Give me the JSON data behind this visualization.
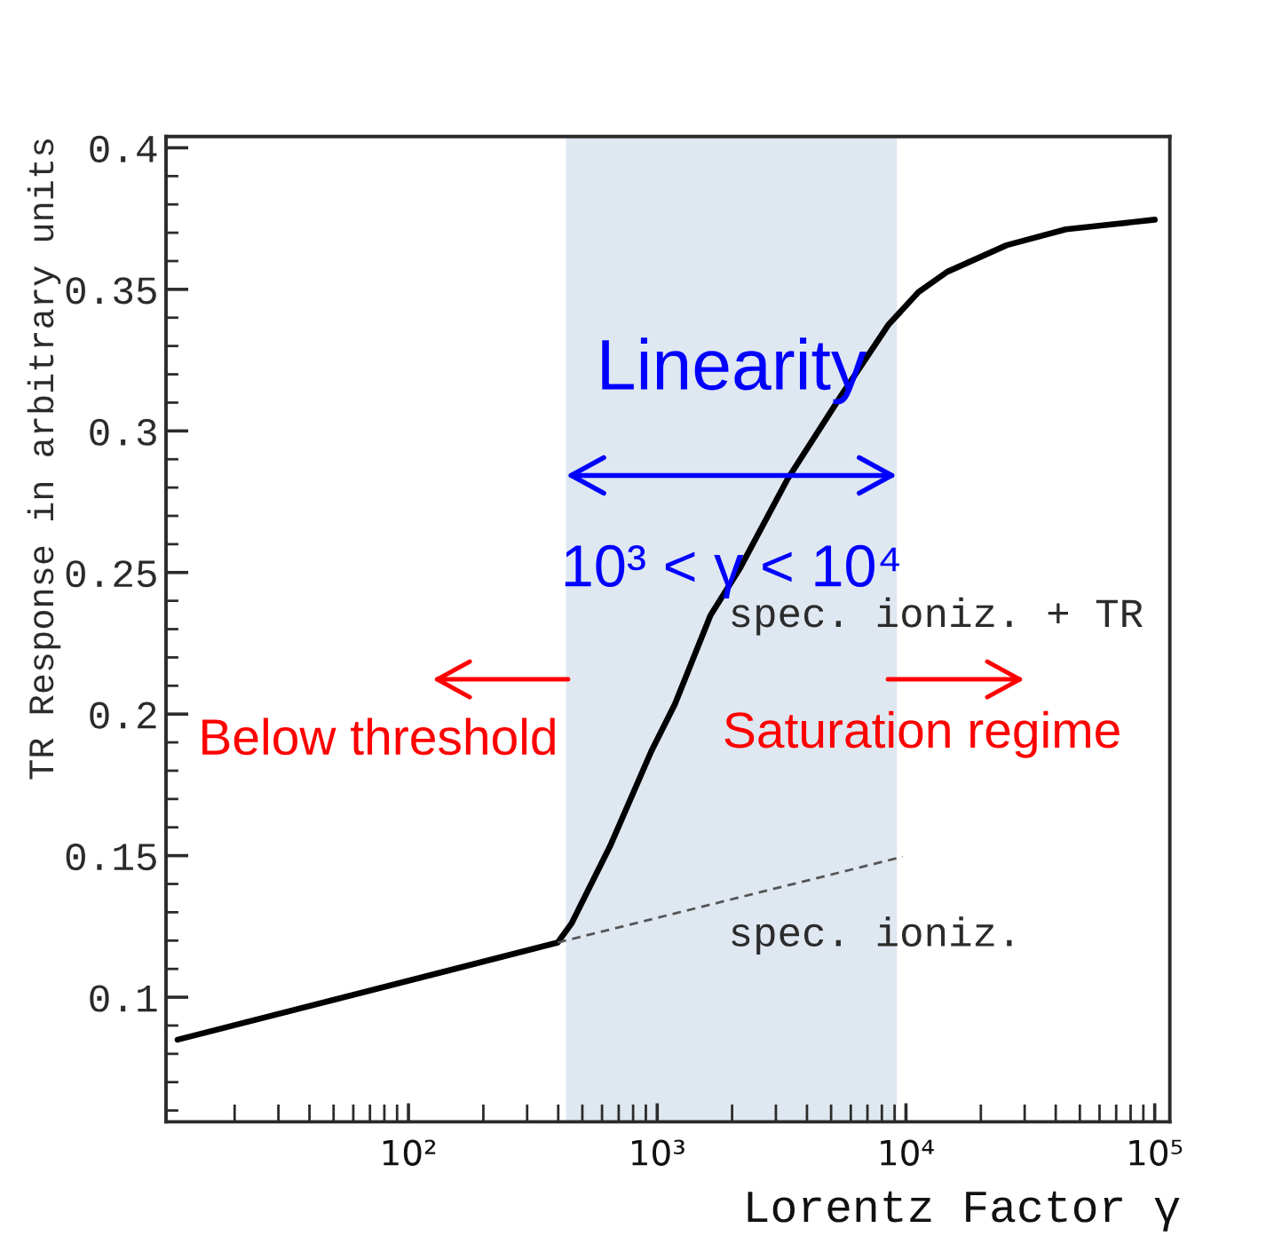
{
  "chart_data": {
    "type": "line",
    "xlabel": "Lorentz Factor γ",
    "ylabel": "TR Response in arbitrary units",
    "log": "x",
    "xlim": [
      10.6,
      115000
    ],
    "ylim": [
      0.056,
      0.404
    ],
    "xticks": [
      {
        "value": 100,
        "label": "10²"
      },
      {
        "value": 1000,
        "label": "10³"
      },
      {
        "value": 10000,
        "label": "10⁴"
      },
      {
        "value": 100000,
        "label": "10⁵"
      }
    ],
    "yticks": [
      0.1,
      0.15,
      0.2,
      0.25,
      0.3,
      0.35,
      0.4
    ],
    "series": [
      {
        "color": "#000000",
        "x": [
          11.8,
          398,
          452,
          646,
          946,
          1178,
          1637,
          2154,
          3342,
          5470,
          8482,
          11220,
          14650,
          25400,
          43950,
          100000
        ],
        "values": [
          0.085,
          0.1193,
          0.126,
          0.1533,
          0.1868,
          0.2035,
          0.2349,
          0.2516,
          0.283,
          0.3123,
          0.3374,
          0.349,
          0.3562,
          0.3656,
          0.3712,
          0.3746
        ]
      },
      {
        "color": "#555555",
        "line_style": "dashed",
        "x": [
          398,
          9700
        ],
        "values": [
          0.1193,
          0.1496
        ]
      }
    ],
    "bands": [
      {
        "axis": "x",
        "from": 430,
        "to": 9200,
        "label": "Linearity",
        "color": "#dfe7f1"
      }
    ],
    "annotations": [
      "10³ < γ < 10⁴",
      "Below threshold",
      "Saturation regime",
      "spec. ioniz. + TR",
      "spec. ioniz."
    ]
  }
}
